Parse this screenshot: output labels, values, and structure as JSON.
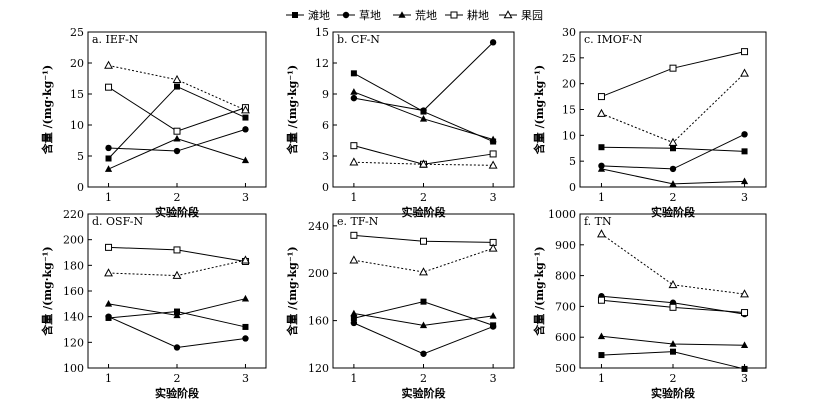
{
  "legend": {
    "entries": [
      {
        "name": "滩地",
        "marker": "square-filled"
      },
      {
        "name": "草地",
        "marker": "circle-filled"
      },
      {
        "name": "荒地",
        "marker": "triangle-filled"
      },
      {
        "name": "耕地",
        "marker": "square-open"
      },
      {
        "name": "果园",
        "marker": "triangle-open"
      }
    ],
    "placement": "top-center"
  },
  "chart_data": [
    {
      "type": "line",
      "title": "a. IEF-N",
      "xlabel": "实验阶段",
      "ylabel": "含量 /(mg·kg⁻¹)",
      "x": [
        1,
        2,
        3
      ],
      "ylim": [
        0,
        25
      ],
      "yticks": [
        0,
        5,
        10,
        15,
        20,
        25
      ],
      "series": [
        {
          "name": "滩地",
          "values": [
            4.6,
            16.2,
            11.2
          ]
        },
        {
          "name": "草地",
          "values": [
            6.3,
            5.8,
            9.3
          ]
        },
        {
          "name": "荒地",
          "values": [
            2.9,
            7.8,
            4.3
          ]
        },
        {
          "name": "耕地",
          "values": [
            16.1,
            9.0,
            12.8
          ]
        },
        {
          "name": "果园",
          "values": [
            19.6,
            17.3,
            12.4
          ]
        }
      ]
    },
    {
      "type": "line",
      "title": "b. CF-N",
      "xlabel": "实验阶段",
      "ylabel": "含量 /(mg·kg⁻¹)",
      "x": [
        1,
        2,
        3
      ],
      "ylim": [
        0,
        15
      ],
      "yticks": [
        0,
        3,
        6,
        9,
        12,
        15
      ],
      "series": [
        {
          "name": "滩地",
          "values": [
            11.0,
            7.3,
            4.4
          ]
        },
        {
          "name": "草地",
          "values": [
            8.6,
            7.4,
            14.0
          ]
        },
        {
          "name": "荒地",
          "values": [
            9.2,
            6.6,
            4.6
          ]
        },
        {
          "name": "耕地",
          "values": [
            4.0,
            2.2,
            3.2
          ]
        },
        {
          "name": "果园",
          "values": [
            2.4,
            2.2,
            2.1
          ]
        }
      ]
    },
    {
      "type": "line",
      "title": "c. IMOF-N",
      "xlabel": "实验阶段",
      "ylabel": "含量 /(mg·kg⁻¹)",
      "x": [
        1,
        2,
        3
      ],
      "ylim": [
        0,
        30
      ],
      "yticks": [
        0,
        5,
        10,
        15,
        20,
        25,
        30
      ],
      "series": [
        {
          "name": "滩地",
          "values": [
            7.7,
            7.5,
            6.9
          ]
        },
        {
          "name": "草地",
          "values": [
            4.1,
            3.5,
            10.2
          ]
        },
        {
          "name": "荒地",
          "values": [
            3.5,
            0.6,
            1.1
          ]
        },
        {
          "name": "耕地",
          "values": [
            17.5,
            23.0,
            26.2
          ]
        },
        {
          "name": "果园",
          "values": [
            14.2,
            8.6,
            22.0
          ]
        }
      ]
    },
    {
      "type": "line",
      "title": "d. OSF-N",
      "xlabel": "实验阶段",
      "ylabel": "含量 /(mg·kg⁻¹)",
      "x": [
        1,
        2,
        3
      ],
      "ylim": [
        100,
        220
      ],
      "yticks": [
        100,
        120,
        140,
        160,
        180,
        200,
        220
      ],
      "series": [
        {
          "name": "滩地",
          "values": [
            139,
            144,
            132
          ]
        },
        {
          "name": "草地",
          "values": [
            140,
            116,
            123
          ]
        },
        {
          "name": "荒地",
          "values": [
            150,
            141,
            154
          ]
        },
        {
          "name": "耕地",
          "values": [
            194,
            192,
            183
          ]
        },
        {
          "name": "果园",
          "values": [
            174,
            172,
            184
          ]
        }
      ]
    },
    {
      "type": "line",
      "title": "e. TF-N",
      "xlabel": "实验阶段",
      "ylabel": "含量 /(mg·kg⁻¹)",
      "x": [
        1,
        2,
        3
      ],
      "ylim": [
        120,
        250
      ],
      "yticks": [
        120,
        160,
        200,
        240
      ],
      "series": [
        {
          "name": "滩地",
          "values": [
            162,
            176,
            156
          ]
        },
        {
          "name": "草地",
          "values": [
            158,
            132,
            155
          ]
        },
        {
          "name": "荒地",
          "values": [
            166,
            156,
            164
          ]
        },
        {
          "name": "耕地",
          "values": [
            232,
            227,
            226
          ]
        },
        {
          "name": "果园",
          "values": [
            211,
            201,
            221
          ]
        }
      ]
    },
    {
      "type": "line",
      "title": "f. TN",
      "xlabel": "实验阶段",
      "ylabel": "含量 /(mg·kg⁻¹)",
      "x": [
        1,
        2,
        3
      ],
      "ylim": [
        500,
        1000
      ],
      "yticks": [
        500,
        600,
        700,
        800,
        900,
        1000
      ],
      "series": [
        {
          "name": "滩地",
          "values": [
            542,
            553,
            497
          ]
        },
        {
          "name": "草地",
          "values": [
            733,
            712,
            675
          ]
        },
        {
          "name": "荒地",
          "values": [
            603,
            578,
            574
          ]
        },
        {
          "name": "耕地",
          "values": [
            720,
            697,
            680
          ]
        },
        {
          "name": "果园",
          "values": [
            935,
            770,
            740
          ]
        }
      ]
    }
  ]
}
